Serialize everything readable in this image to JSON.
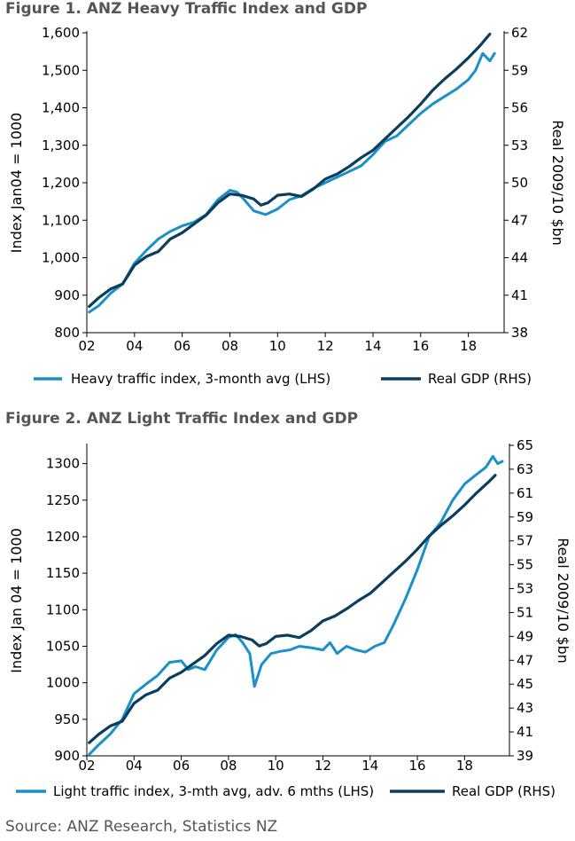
{
  "colors": {
    "light_series": "#1a8fc9",
    "gdp_series": "#0b3d5c",
    "title": "#555555",
    "axis": "#000000"
  },
  "source": "Source: ANZ Research, Statistics NZ",
  "chart_data": [
    {
      "type": "line",
      "title": "Figure 1. ANZ Heavy Traffic Index and GDP",
      "ylabel": "Index Jan04 = 1000",
      "y2label": "Real 2009/10 $bn",
      "xlim": [
        2002,
        2019.5
      ],
      "ylim": [
        800,
        1600
      ],
      "y2lim": [
        38,
        62
      ],
      "x_ticks": [
        "02",
        "04",
        "06",
        "08",
        "10",
        "12",
        "14",
        "16",
        "18"
      ],
      "y_ticks": [
        "800",
        "900",
        "1,000",
        "1,100",
        "1,200",
        "1,300",
        "1,400",
        "1,500",
        "1,600"
      ],
      "y2_ticks": [
        "38",
        "41",
        "44",
        "47",
        "50",
        "53",
        "56",
        "59",
        "62"
      ],
      "legend_position": "bottom",
      "series": [
        {
          "name": "Heavy traffic index, 3-month avg (LHS)",
          "axis": "left",
          "x": [
            2002.1,
            2002.5,
            2003.0,
            2003.5,
            2004.0,
            2004.5,
            2005.0,
            2005.5,
            2006.0,
            2006.5,
            2007.0,
            2007.5,
            2008.0,
            2008.3,
            2008.6,
            2009.0,
            2009.5,
            2010.0,
            2010.5,
            2011.0,
            2011.5,
            2012.0,
            2012.5,
            2013.0,
            2013.5,
            2014.0,
            2014.5,
            2015.0,
            2015.5,
            2016.0,
            2016.5,
            2017.0,
            2017.5,
            2018.0,
            2018.3,
            2018.6,
            2018.9,
            2019.1
          ],
          "y": [
            855,
            872,
            905,
            930,
            985,
            1020,
            1050,
            1070,
            1085,
            1095,
            1115,
            1155,
            1180,
            1175,
            1155,
            1125,
            1115,
            1130,
            1155,
            1165,
            1185,
            1200,
            1215,
            1230,
            1245,
            1275,
            1310,
            1325,
            1355,
            1385,
            1410,
            1430,
            1450,
            1475,
            1500,
            1545,
            1525,
            1545
          ]
        },
        {
          "name": "Real GDP (RHS)",
          "axis": "right",
          "x": [
            2002.1,
            2002.5,
            2003.0,
            2003.5,
            2004.0,
            2004.5,
            2005.0,
            2005.5,
            2006.0,
            2006.5,
            2007.0,
            2007.5,
            2008.0,
            2008.5,
            2009.0,
            2009.3,
            2009.6,
            2010.0,
            2010.5,
            2011.0,
            2011.5,
            2012.0,
            2012.5,
            2013.0,
            2013.5,
            2014.0,
            2014.5,
            2015.0,
            2015.5,
            2016.0,
            2016.5,
            2017.0,
            2017.5,
            2018.0,
            2018.5,
            2018.9
          ],
          "y": [
            40.1,
            40.8,
            41.5,
            41.9,
            43.4,
            44.1,
            44.5,
            45.5,
            46.0,
            46.7,
            47.4,
            48.4,
            49.1,
            49.0,
            48.7,
            48.2,
            48.4,
            49.0,
            49.1,
            48.9,
            49.5,
            50.3,
            50.7,
            51.3,
            52.0,
            52.6,
            53.5,
            54.4,
            55.3,
            56.3,
            57.4,
            58.3,
            59.1,
            60.0,
            61.0,
            61.9
          ]
        }
      ]
    },
    {
      "type": "line",
      "title": "Figure 2. ANZ Light Traffic Index and GDP",
      "ylabel": "Index Jan 04 = 1000",
      "y2label": "Real 2009/10 $bn",
      "xlim": [
        2002,
        2019.9
      ],
      "ylim": [
        900,
        1325
      ],
      "y2lim": [
        39,
        65
      ],
      "x_ticks": [
        "02",
        "04",
        "06",
        "08",
        "10",
        "12",
        "14",
        "16",
        "18"
      ],
      "y_ticks": [
        "900",
        "950",
        "1000",
        "1050",
        "1100",
        "1150",
        "1200",
        "1250",
        "1300"
      ],
      "y2_ticks": [
        "39",
        "41",
        "43",
        "45",
        "47",
        "49",
        "51",
        "53",
        "55",
        "57",
        "59",
        "61",
        "63",
        "65"
      ],
      "legend_position": "bottom",
      "series": [
        {
          "name": "Light traffic index, 3-mth avg, adv. 6 mths (LHS)",
          "axis": "left",
          "x": [
            2002.1,
            2002.5,
            2003.0,
            2003.5,
            2004.0,
            2004.5,
            2005.0,
            2005.5,
            2006.0,
            2006.3,
            2006.6,
            2007.0,
            2007.5,
            2008.0,
            2008.3,
            2008.6,
            2008.9,
            2009.1,
            2009.4,
            2009.8,
            2010.2,
            2010.6,
            2011.0,
            2011.5,
            2012.0,
            2012.3,
            2012.6,
            2013.0,
            2013.4,
            2013.8,
            2014.2,
            2014.6,
            2015.0,
            2015.5,
            2016.0,
            2016.5,
            2017.0,
            2017.5,
            2018.0,
            2018.5,
            2018.9,
            2019.2,
            2019.4,
            2019.6
          ],
          "y": [
            902,
            915,
            930,
            950,
            985,
            998,
            1010,
            1028,
            1030,
            1018,
            1022,
            1018,
            1045,
            1062,
            1066,
            1055,
            1040,
            995,
            1025,
            1040,
            1043,
            1045,
            1050,
            1048,
            1045,
            1055,
            1040,
            1050,
            1045,
            1042,
            1050,
            1055,
            1080,
            1115,
            1155,
            1200,
            1220,
            1250,
            1272,
            1285,
            1295,
            1310,
            1300,
            1303
          ]
        },
        {
          "name": "Real GDP (RHS)",
          "axis": "right",
          "x": [
            2002.1,
            2002.5,
            2003.0,
            2003.5,
            2004.0,
            2004.5,
            2005.0,
            2005.5,
            2006.0,
            2006.5,
            2007.0,
            2007.5,
            2008.0,
            2008.5,
            2009.0,
            2009.3,
            2009.6,
            2010.0,
            2010.5,
            2011.0,
            2011.5,
            2012.0,
            2012.5,
            2013.0,
            2013.5,
            2014.0,
            2014.5,
            2015.0,
            2015.5,
            2016.0,
            2016.5,
            2017.0,
            2017.5,
            2018.0,
            2018.5,
            2019.0,
            2019.3
          ],
          "y": [
            40.1,
            40.8,
            41.5,
            41.9,
            43.4,
            44.1,
            44.5,
            45.5,
            46.0,
            46.7,
            47.4,
            48.4,
            49.1,
            49.0,
            48.7,
            48.2,
            48.4,
            49.0,
            49.1,
            48.9,
            49.5,
            50.3,
            50.7,
            51.3,
            52.0,
            52.6,
            53.5,
            54.4,
            55.3,
            56.3,
            57.4,
            58.3,
            59.1,
            60.0,
            61.0,
            61.9,
            62.5
          ]
        }
      ]
    }
  ]
}
